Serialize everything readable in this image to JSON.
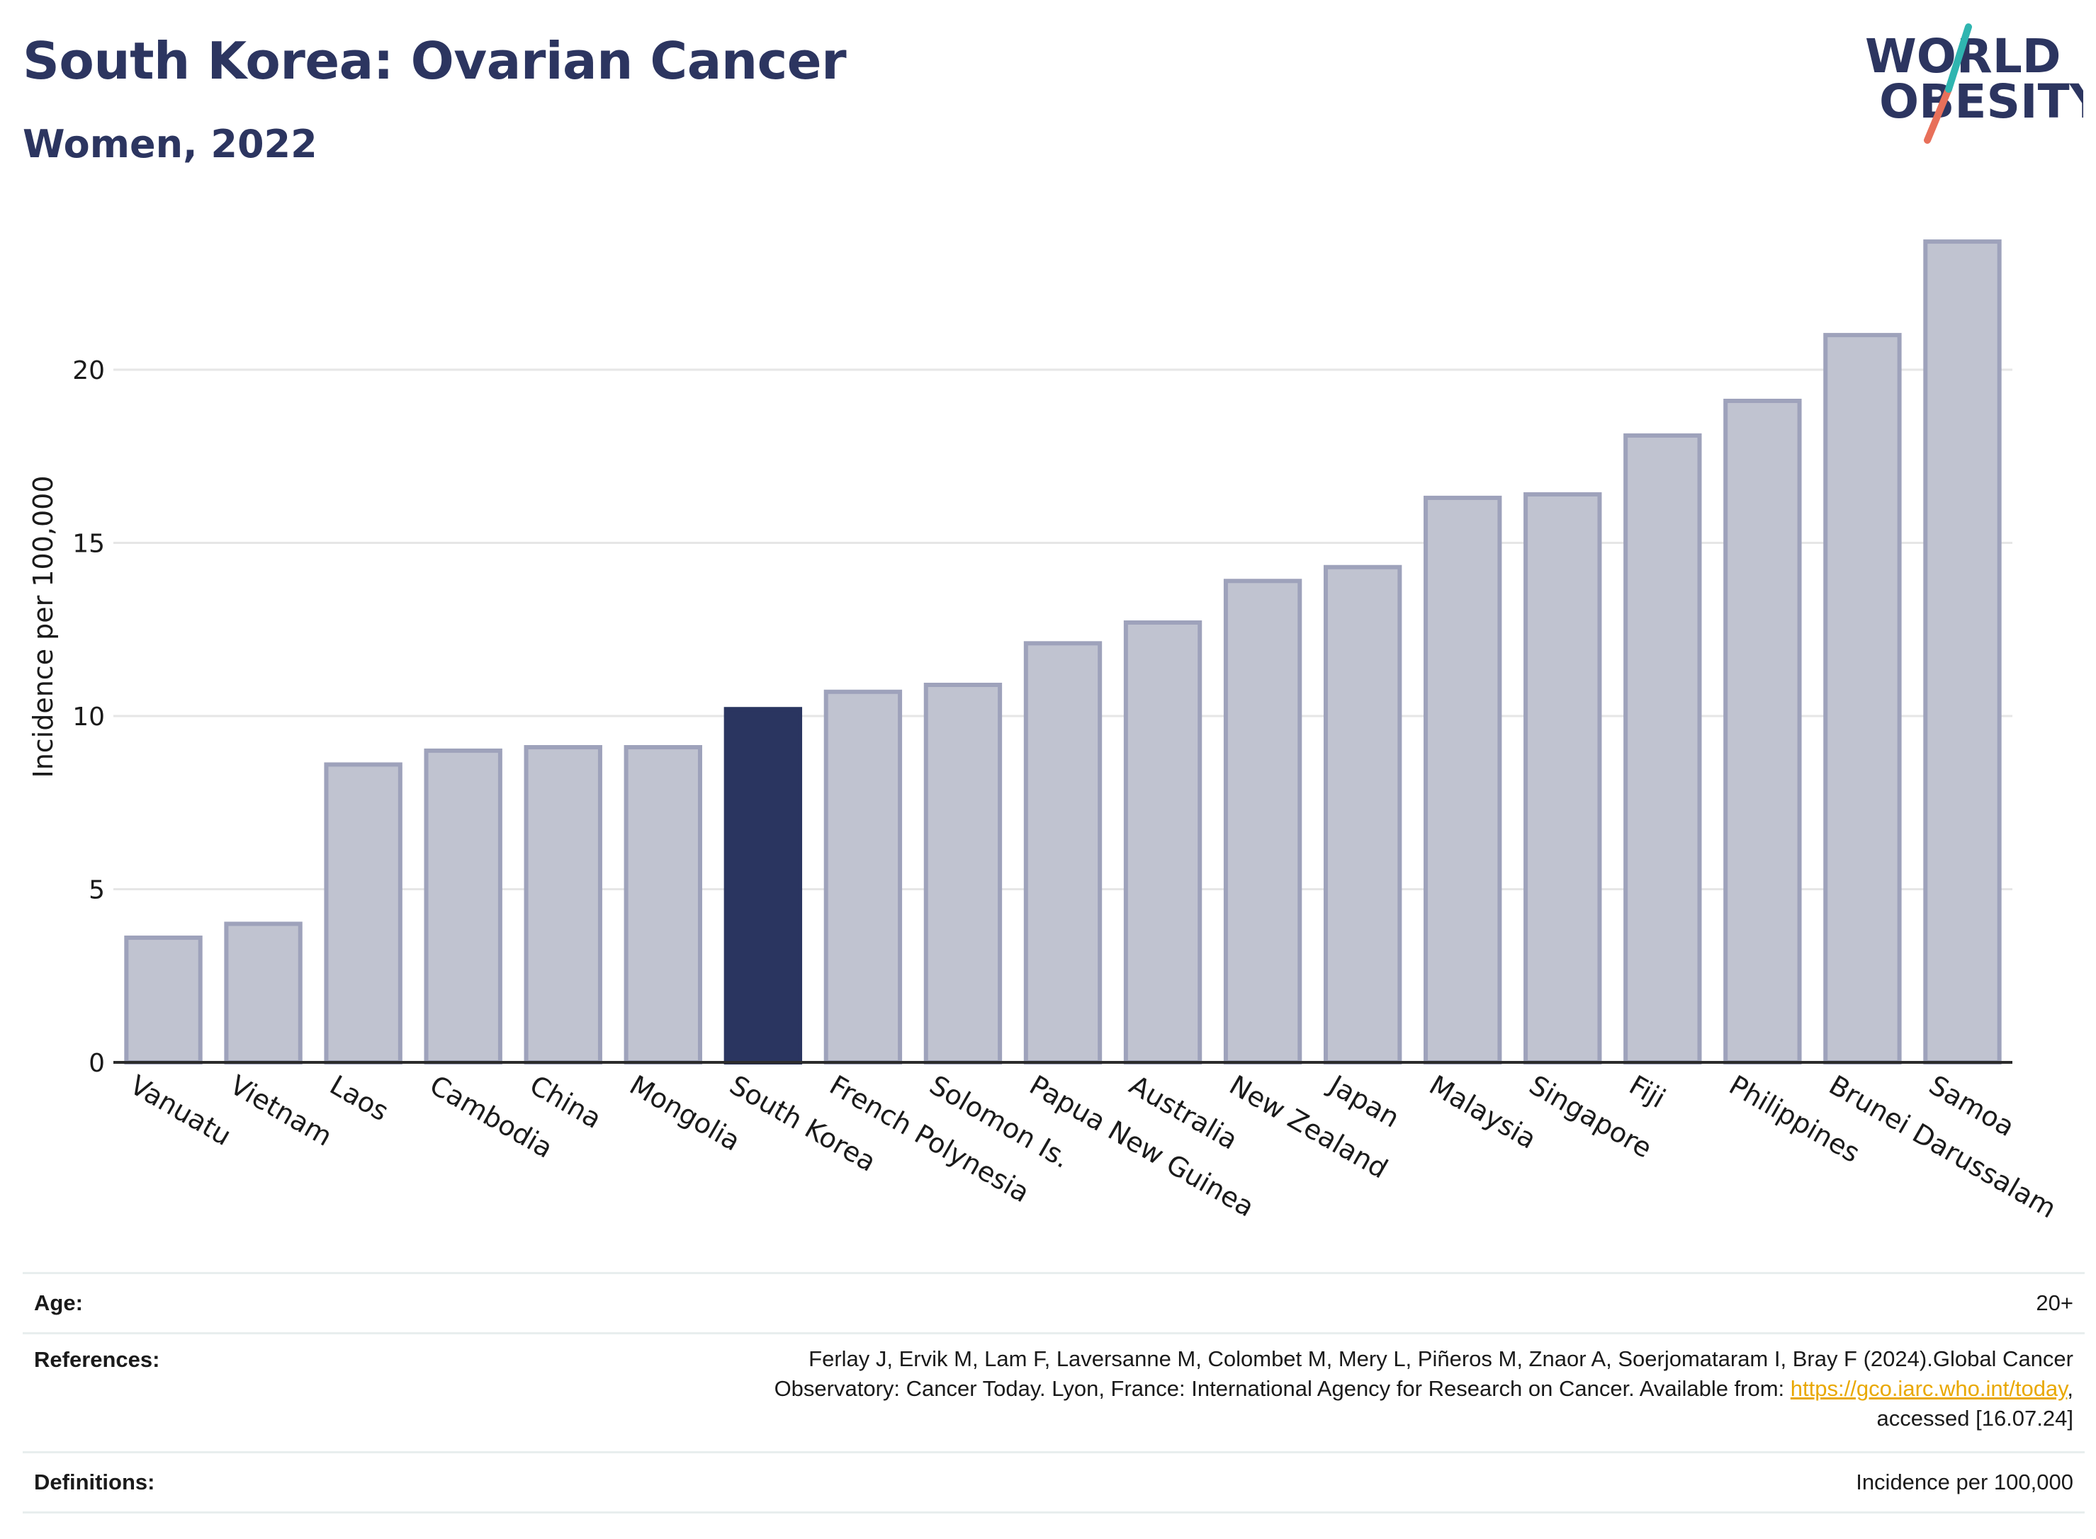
{
  "header": {
    "title": "South Korea: Ovarian Cancer",
    "subtitle": "Women, 2022"
  },
  "logo": {
    "line1": "WORLD",
    "line2": "OBESITY",
    "colors": {
      "navy": "#2c3560",
      "teal": "#2fb5b0",
      "coral": "#e8705a"
    }
  },
  "chart_data": {
    "type": "bar",
    "title": "South Korea: Ovarian Cancer",
    "subtitle": "Women, 2022",
    "ylabel": "Incidence per 100,000",
    "xlabel": "",
    "ylim": [
      0,
      25
    ],
    "yticks": [
      0,
      5,
      10,
      15,
      20
    ],
    "grid": true,
    "highlight": "South Korea",
    "colors": {
      "default_fill": "#c0c3d0",
      "default_stroke": "#9ea2bb",
      "highlight_fill": "#2a3560"
    },
    "categories": [
      "Vanuatu",
      "Vietnam",
      "Laos",
      "Cambodia",
      "China",
      "Mongolia",
      "South Korea",
      "French Polynesia",
      "Solomon Is.",
      "Papua New Guinea",
      "Australia",
      "New Zealand",
      "Japan",
      "Malaysia",
      "Singapore",
      "Fiji",
      "Philippines",
      "Brunei Darussalam",
      "Samoa"
    ],
    "values": [
      3.6,
      4.0,
      8.6,
      9.0,
      9.1,
      9.1,
      10.2,
      10.7,
      10.9,
      12.1,
      12.7,
      13.9,
      14.3,
      16.3,
      16.4,
      18.1,
      19.1,
      21.0,
      23.7
    ]
  },
  "info": {
    "age_label": "Age:",
    "age_value": "20+",
    "references_label": "References:",
    "references_line1": "Ferlay J, Ervik M, Lam F, Laversanne M, Colombet M, Mery L, Piñeros M, Znaor A, Soerjomataram I, Bray F (2024).Global Cancer",
    "references_line2_pre": "Observatory: Cancer Today. Lyon, France: International Agency for Research on Cancer. Available from: ",
    "references_link": "https://gco.iarc.who.int/today",
    "references_line2_post": ",",
    "references_line3": "accessed [16.07.24]",
    "definitions_label": "Definitions:",
    "definitions_value": "Incidence per 100,000"
  }
}
